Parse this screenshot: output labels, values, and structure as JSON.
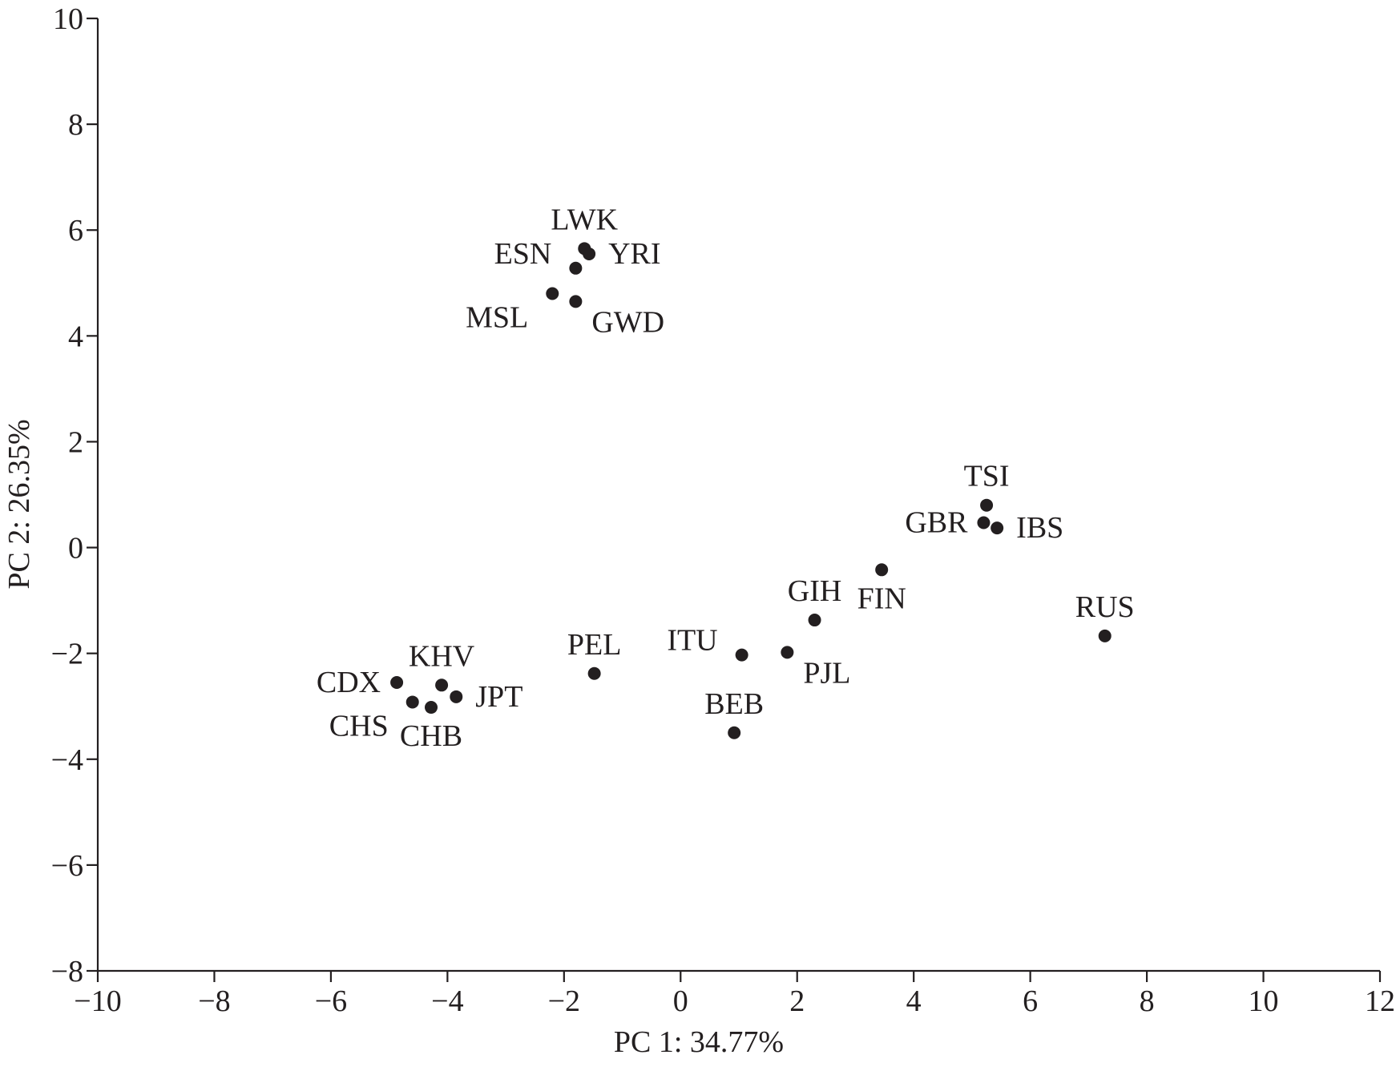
{
  "chart_data": {
    "type": "scatter",
    "xlabel": "PC 1: 34.77%",
    "ylabel": "PC 2: 26.35%",
    "xlim": [
      -10,
      12
    ],
    "ylim": [
      -8,
      10
    ],
    "xticks": [
      -10,
      -8,
      -6,
      -4,
      -2,
      0,
      2,
      4,
      6,
      8,
      10,
      12
    ],
    "yticks": [
      -8,
      -6,
      -4,
      -2,
      0,
      2,
      4,
      6,
      8,
      10
    ],
    "xtick_labels": [
      "−10",
      "−8",
      "−6",
      "−4",
      "−2",
      "0",
      "2",
      "4",
      "6",
      "8",
      "10",
      "12"
    ],
    "ytick_labels": [
      "−8",
      "−6",
      "−4",
      "−2",
      "0",
      "2",
      "4",
      "6",
      "8",
      "10"
    ],
    "grid": false,
    "legend": "none",
    "marker_color": "#231f20",
    "points": [
      {
        "label": "LWK",
        "x": -1.65,
        "y": 5.65,
        "label_pos": "above"
      },
      {
        "label": "YRI",
        "x": -1.57,
        "y": 5.55,
        "label_pos": "right"
      },
      {
        "label": "ESN",
        "x": -1.8,
        "y": 5.28,
        "label_pos": "upper-left"
      },
      {
        "label": "MSL",
        "x": -2.2,
        "y": 4.8,
        "label_pos": "lower-left"
      },
      {
        "label": "GWD",
        "x": -1.8,
        "y": 4.65,
        "label_pos": "lower-right"
      },
      {
        "label": "TSI",
        "x": 5.25,
        "y": 0.8,
        "label_pos": "above"
      },
      {
        "label": "GBR",
        "x": 5.2,
        "y": 0.47,
        "label_pos": "left"
      },
      {
        "label": "IBS",
        "x": 5.43,
        "y": 0.37,
        "label_pos": "right"
      },
      {
        "label": "FIN",
        "x": 3.45,
        "y": -0.42,
        "label_pos": "below"
      },
      {
        "label": "GIH",
        "x": 2.3,
        "y": -1.37,
        "label_pos": "above"
      },
      {
        "label": "RUS",
        "x": 7.28,
        "y": -1.67,
        "label_pos": "above"
      },
      {
        "label": "ITU",
        "x": 1.05,
        "y": -2.03,
        "label_pos": "upper-left"
      },
      {
        "label": "PJL",
        "x": 1.83,
        "y": -1.98,
        "label_pos": "lower-right"
      },
      {
        "label": "PEL",
        "x": -1.48,
        "y": -2.38,
        "label_pos": "above"
      },
      {
        "label": "BEB",
        "x": 0.92,
        "y": -3.5,
        "label_pos": "above"
      },
      {
        "label": "CDX",
        "x": -4.87,
        "y": -2.55,
        "label_pos": "left"
      },
      {
        "label": "KHV",
        "x": -4.1,
        "y": -2.6,
        "label_pos": "above"
      },
      {
        "label": "JPT",
        "x": -3.85,
        "y": -2.82,
        "label_pos": "right"
      },
      {
        "label": "CHS",
        "x": -4.6,
        "y": -2.92,
        "label_pos": "lower-left"
      },
      {
        "label": "CHB",
        "x": -4.28,
        "y": -3.02,
        "label_pos": "below"
      }
    ]
  }
}
